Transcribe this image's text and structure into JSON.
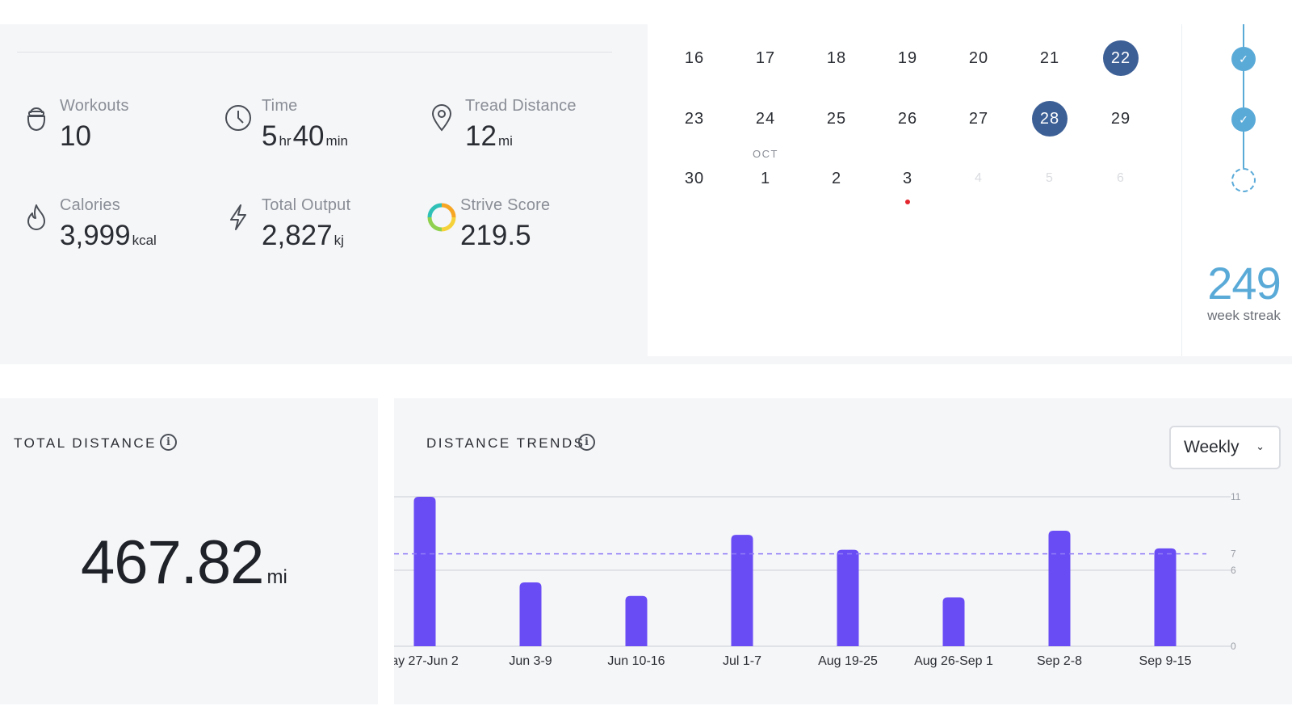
{
  "stats": {
    "workouts": {
      "label": "Workouts",
      "value": "10"
    },
    "time": {
      "label": "Time",
      "hours": "5",
      "hours_unit": "hr",
      "minutes": "40",
      "minutes_unit": "min"
    },
    "tread_distance": {
      "label": "Tread Distance",
      "value": "12",
      "unit": "mi"
    },
    "calories": {
      "label": "Calories",
      "value": "3,999",
      "unit": "kcal"
    },
    "total_output": {
      "label": "Total Output",
      "value": "2,827",
      "unit": "kj"
    },
    "strive_score": {
      "label": "Strive Score",
      "value": "219.5"
    }
  },
  "calendar": {
    "rows": [
      [
        {
          "d": "16"
        },
        {
          "d": "17"
        },
        {
          "d": "18"
        },
        {
          "d": "19"
        },
        {
          "d": "20"
        },
        {
          "d": "21"
        },
        {
          "d": "22",
          "state": "selected"
        }
      ],
      [
        {
          "d": "23"
        },
        {
          "d": "24"
        },
        {
          "d": "25"
        },
        {
          "d": "26"
        },
        {
          "d": "27"
        },
        {
          "d": "28",
          "state": "selected"
        },
        {
          "d": "29"
        }
      ],
      [
        {
          "d": "30"
        },
        {
          "d": "1",
          "month": "OCT"
        },
        {
          "d": "2"
        },
        {
          "d": "3",
          "dot": true
        },
        {
          "d": "4",
          "state": "future"
        },
        {
          "d": "5",
          "state": "future"
        },
        {
          "d": "6",
          "state": "future"
        }
      ]
    ]
  },
  "streak": {
    "weeks": [
      "done",
      "done",
      "pending"
    ],
    "value": "249",
    "label": "week streak",
    "check_glyph": "✓"
  },
  "total_distance": {
    "title": "TOTAL DISTANCE",
    "info_glyph": "i",
    "value": "467.82",
    "unit": "mi"
  },
  "distance_trends": {
    "title": "DISTANCE TRENDS",
    "info_glyph": "i",
    "period_select": "Weekly",
    "period_chevron": "⌄"
  },
  "colors": {
    "accent_purple": "#6a4cf5",
    "selected_day": "#3c5f96",
    "streak_blue": "#5aaad8",
    "dot_red": "#e3262e"
  },
  "chart_data": {
    "type": "bar",
    "categories": [
      "ay 27-Jun 2",
      "Jun 3-9",
      "Jun 10-16",
      "Jul 1-7",
      "Aug 19-25",
      "Aug 26-Sep 1",
      "Sep 2-8",
      "Sep 9-15"
    ],
    "values": [
      11,
      4.7,
      3.7,
      8.2,
      7.1,
      3.6,
      8.5,
      7.2
    ],
    "average": 6.8,
    "y_ticks": [
      "11",
      "7",
      "6",
      "0"
    ],
    "y_tick_values": [
      11,
      6.8,
      5.6,
      0
    ],
    "ylim": [
      0,
      11
    ],
    "grid": true,
    "title": "",
    "xlabel": "",
    "ylabel": ""
  }
}
